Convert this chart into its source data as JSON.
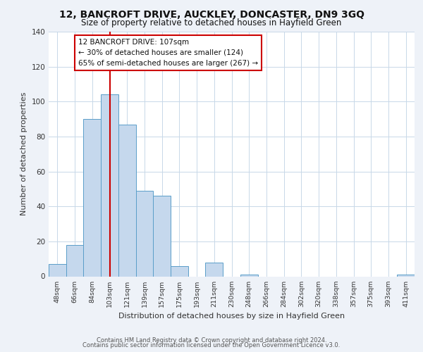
{
  "title": "12, BANCROFT DRIVE, AUCKLEY, DONCASTER, DN9 3GQ",
  "subtitle": "Size of property relative to detached houses in Hayfield Green",
  "xlabel": "Distribution of detached houses by size in Hayfield Green",
  "ylabel": "Number of detached properties",
  "bar_labels": [
    "48sqm",
    "66sqm",
    "84sqm",
    "103sqm",
    "121sqm",
    "139sqm",
    "157sqm",
    "175sqm",
    "193sqm",
    "211sqm",
    "230sqm",
    "248sqm",
    "266sqm",
    "284sqm",
    "302sqm",
    "320sqm",
    "338sqm",
    "357sqm",
    "375sqm",
    "393sqm",
    "411sqm"
  ],
  "bar_values": [
    7,
    18,
    90,
    104,
    87,
    49,
    46,
    6,
    0,
    8,
    0,
    1,
    0,
    0,
    0,
    0,
    0,
    0,
    0,
    0,
    1
  ],
  "bar_color": "#c5d8ed",
  "bar_edge_color": "#5a9ec9",
  "background_color": "#eef2f8",
  "plot_bg_color": "#ffffff",
  "grid_color": "#c8d8e8",
  "marker_color": "#cc0000",
  "annotation_line1": "12 BANCROFT DRIVE: 107sqm",
  "annotation_line2": "← 30% of detached houses are smaller (124)",
  "annotation_line3": "65% of semi-detached houses are larger (267) →",
  "annotation_box_color": "#ffffff",
  "annotation_box_edge": "#cc0000",
  "ylim": [
    0,
    140
  ],
  "yticks": [
    0,
    20,
    40,
    60,
    80,
    100,
    120,
    140
  ],
  "footer_line1": "Contains HM Land Registry data © Crown copyright and database right 2024.",
  "footer_line2": "Contains public sector information licensed under the Open Government Licence v3.0."
}
